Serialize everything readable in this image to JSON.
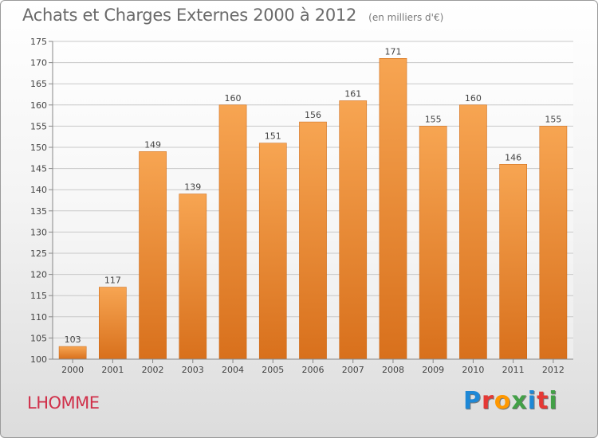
{
  "header": {
    "title": "Achats et Charges Externes 2000 à 2012",
    "subtitle": "(en milliers d'€)"
  },
  "footer": {
    "city": "LHOMME",
    "logo_text": "Proxiti",
    "logo_colors": [
      "#1e88d6",
      "#e53935",
      "#ff9800",
      "#43a047",
      "#1e88d6",
      "#e53935",
      "#43a047"
    ]
  },
  "chart_data": {
    "type": "bar",
    "title": "Achats et Charges Externes 2000 à 2012",
    "subtitle": "(en milliers d'€)",
    "categories": [
      "2000",
      "2001",
      "2002",
      "2003",
      "2004",
      "2005",
      "2006",
      "2007",
      "2008",
      "2009",
      "2010",
      "2011",
      "2012"
    ],
    "values": [
      103,
      117,
      149,
      139,
      160,
      151,
      156,
      161,
      171,
      155,
      160,
      146,
      155
    ],
    "ylim": [
      100,
      175
    ],
    "yticks": [
      100,
      105,
      110,
      115,
      120,
      125,
      130,
      135,
      140,
      145,
      150,
      155,
      160,
      165,
      170,
      175
    ],
    "grid": true,
    "data_labels": true,
    "bar_color_top": "#f7a552",
    "bar_color_bottom": "#d8701c",
    "grid_color": "#c8c8c8"
  }
}
